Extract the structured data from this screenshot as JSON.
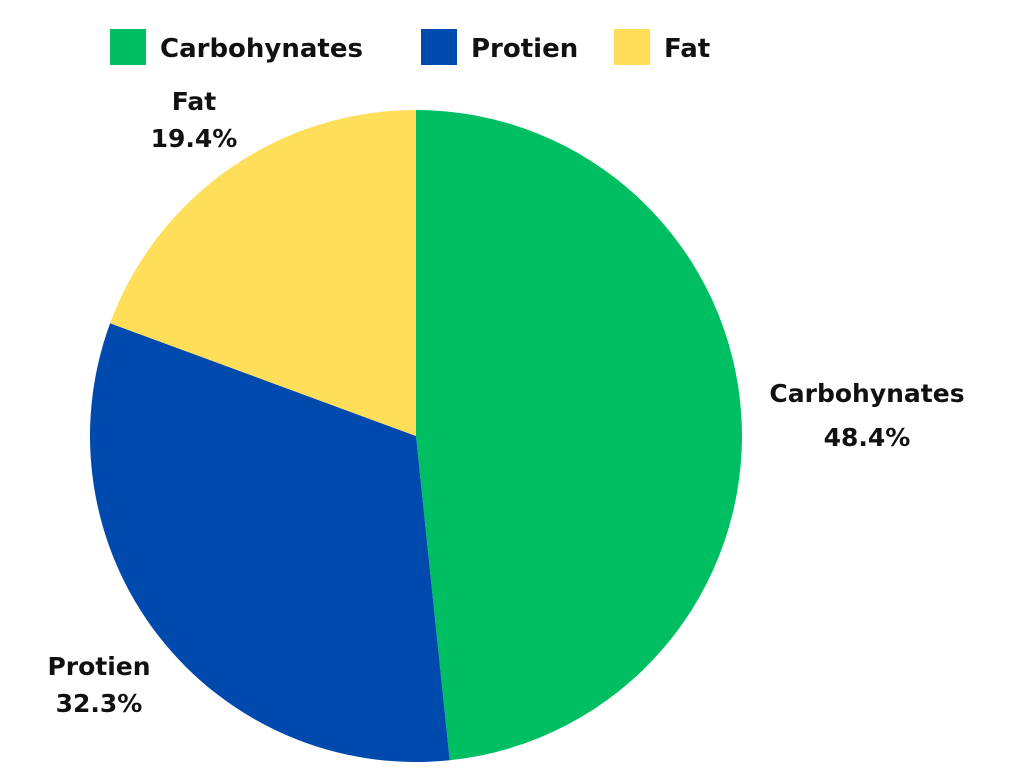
{
  "chart_data": {
    "type": "pie",
    "title": "",
    "legend_position": "top",
    "slices": [
      {
        "label": "Carbohynates",
        "percent_label": "48.4%",
        "value": 48.4,
        "color": "#00BF63"
      },
      {
        "label": "Protien",
        "percent_label": "32.3%",
        "value": 32.3,
        "color": "#004AAD"
      },
      {
        "label": "Fat",
        "percent_label": "19.4%",
        "value": 19.4,
        "color": "#FFDE59"
      }
    ]
  }
}
